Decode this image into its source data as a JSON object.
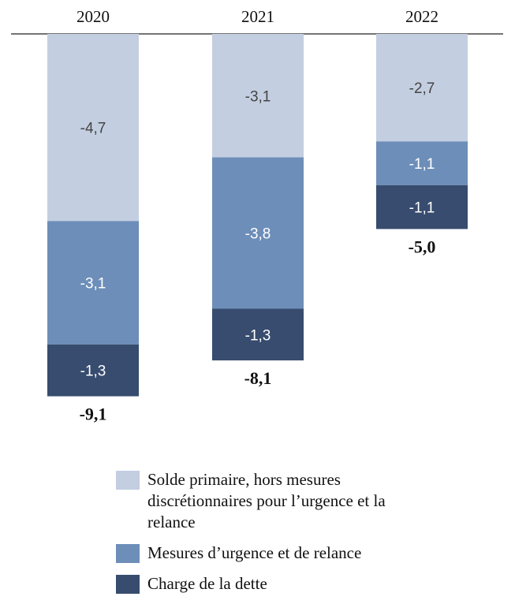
{
  "chart_data": {
    "type": "bar",
    "stacked": true,
    "orientation": "negative-down",
    "categories": [
      "2020",
      "2021",
      "2022"
    ],
    "series": [
      {
        "name": "Solde primaire, hors mesures discrétionnaires pour l’urgence et la relance",
        "values": [
          -4.7,
          -3.1,
          -2.7
        ],
        "labels": [
          "-4,7",
          "-3,1",
          "-2,7"
        ],
        "color": "#c3cee0",
        "label_color": "#444444"
      },
      {
        "name": "Mesures d’urgence et de relance",
        "values": [
          -3.1,
          -3.8,
          -1.1
        ],
        "labels": [
          "-3,1",
          "-3,8",
          "-1,1"
        ],
        "color": "#6d8eb9",
        "label_color": "#ffffff"
      },
      {
        "name": "Charge de la dette",
        "values": [
          -1.3,
          -1.3,
          -1.1
        ],
        "labels": [
          "-1,3",
          "-1,3",
          "-1,1"
        ],
        "color": "#374c6e",
        "label_color": "#ffffff"
      }
    ],
    "totals": [
      "-9,1",
      "-8,1",
      "-5,0"
    ],
    "ylim": [
      -9.1,
      0
    ],
    "grid": false,
    "legend_position": "bottom"
  }
}
